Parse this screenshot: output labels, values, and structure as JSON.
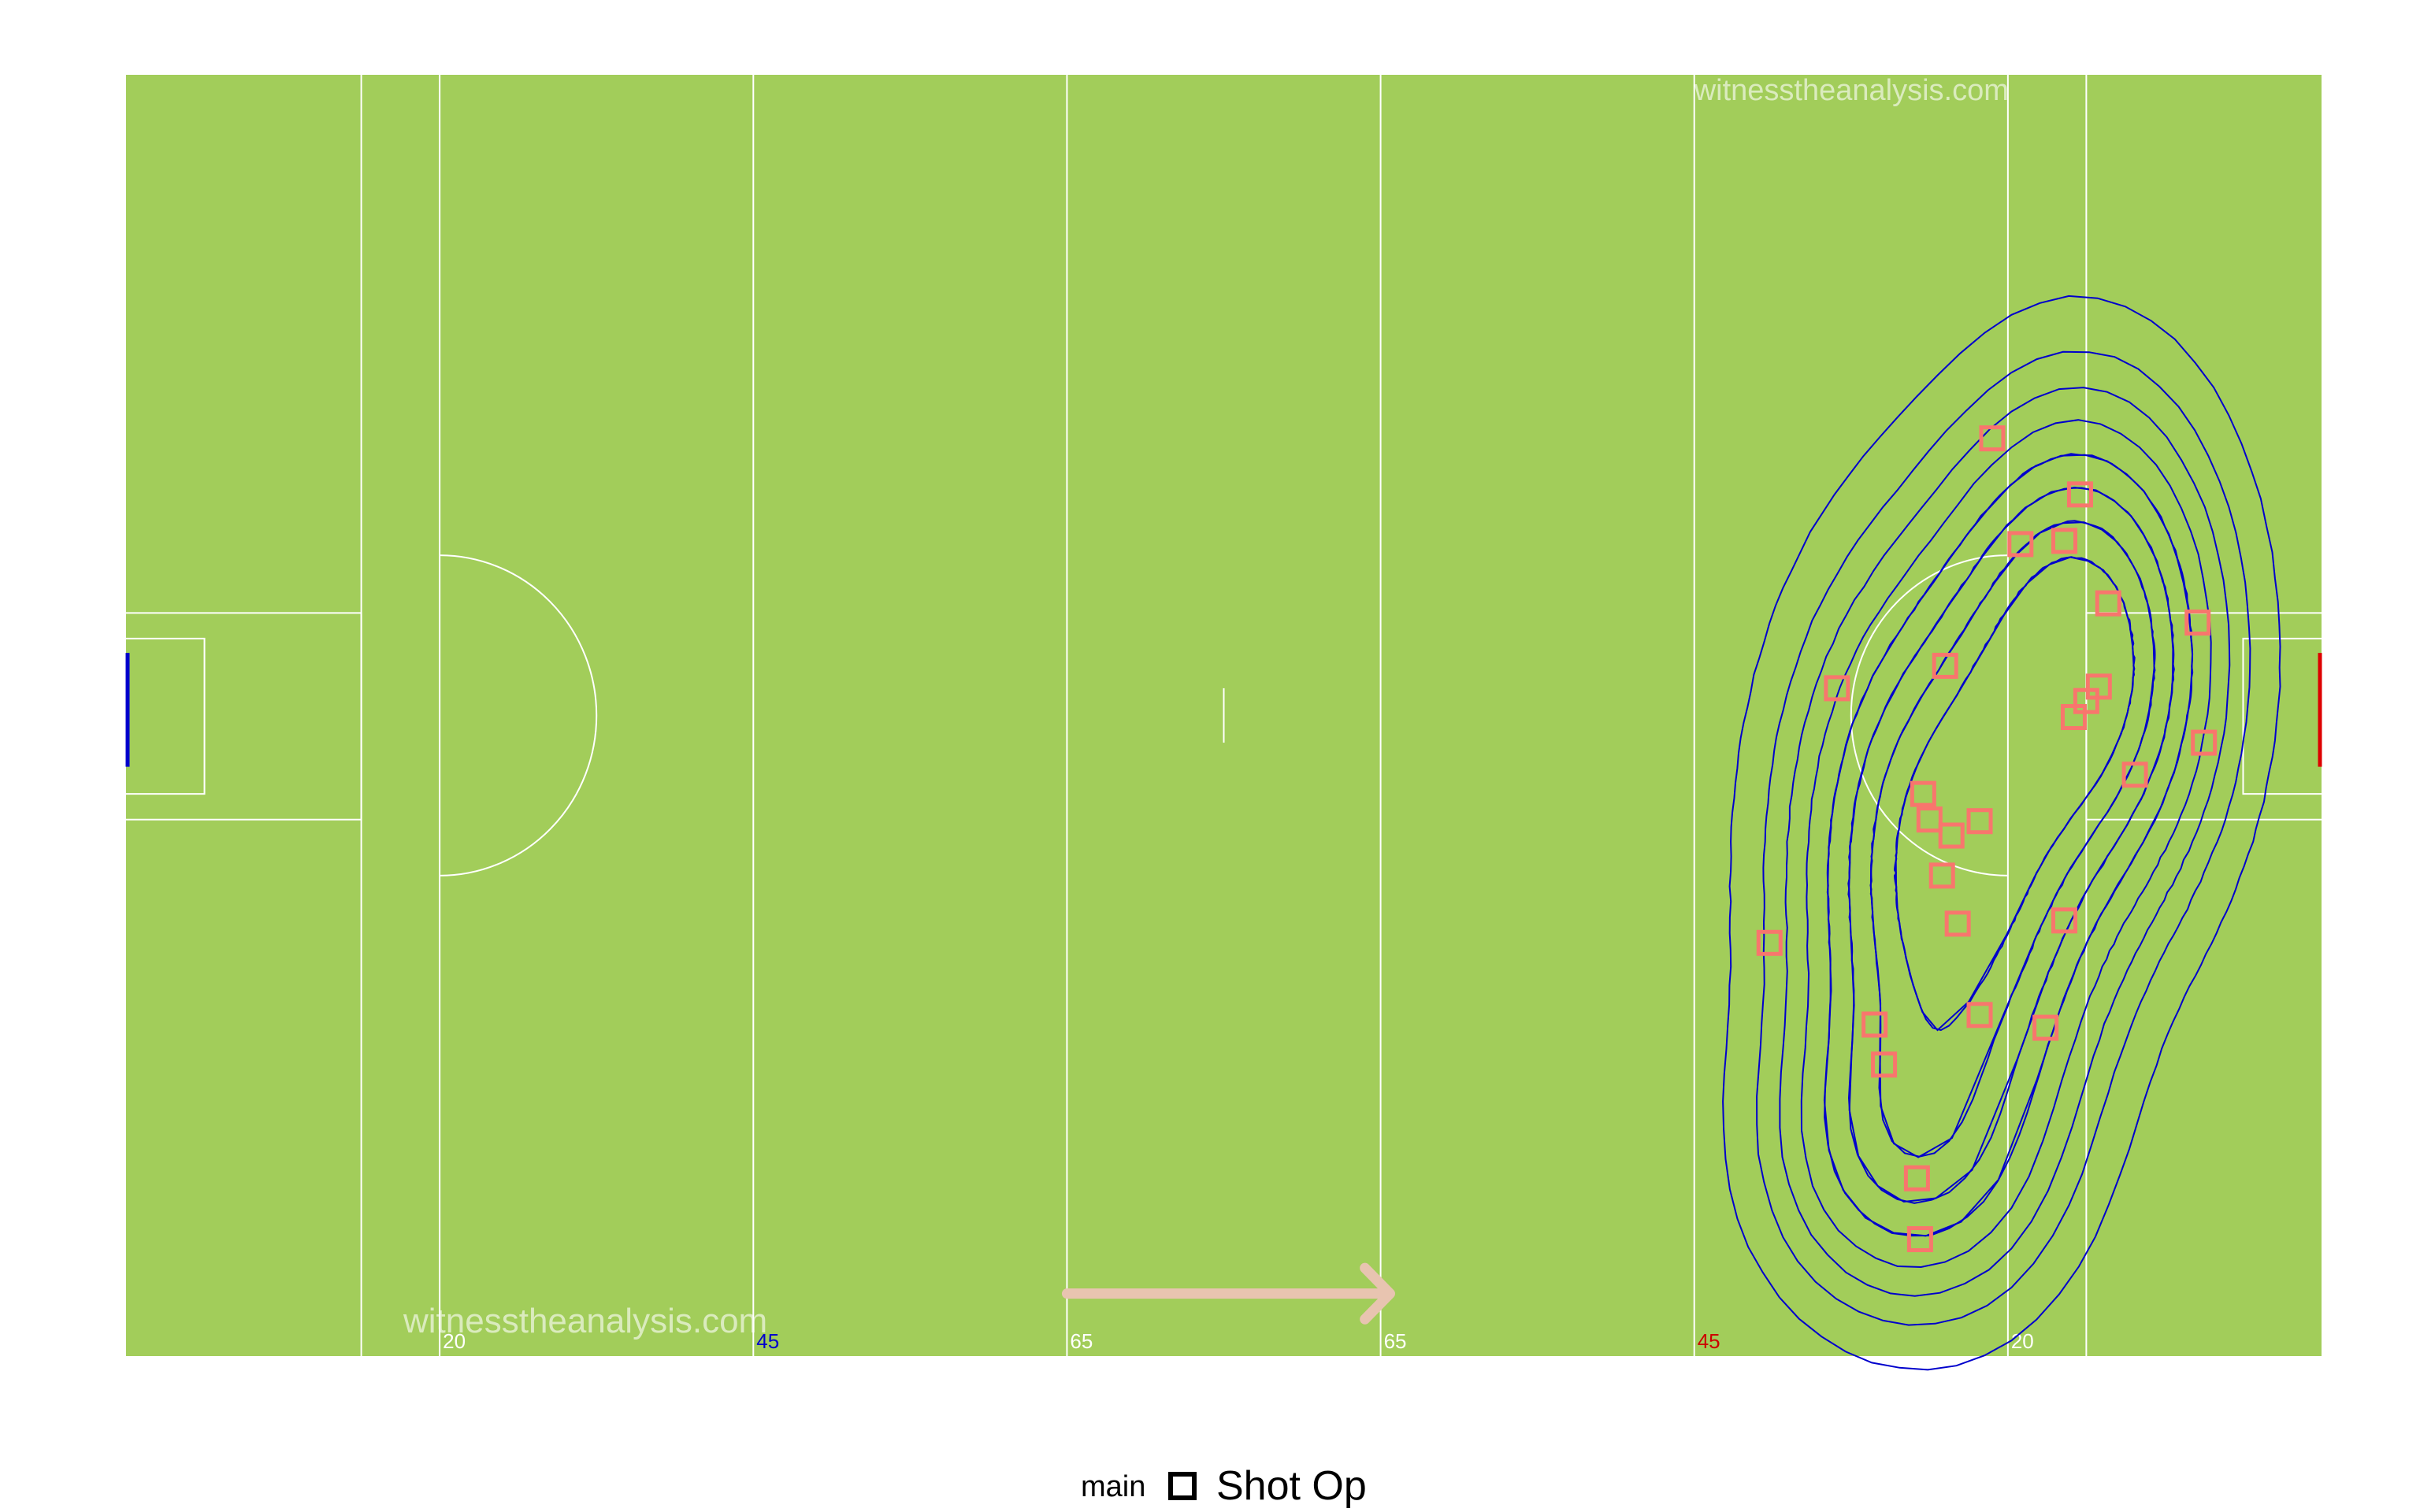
{
  "chart_data": {
    "type": "scatter",
    "pitch_color": "#a2cd5a",
    "line_color": "#ffffff",
    "contour_color": "#0000cc",
    "xlim": [
      0,
      140
    ],
    "ylim": [
      0,
      80
    ],
    "xticks": [
      20,
      {
        "value": 40,
        "label": "45"
      },
      {
        "value": 60,
        "label": "65"
      },
      {
        "value": 80,
        "label": "65"
      },
      {
        "value": 100,
        "label": "45"
      },
      {
        "value": 120,
        "label": "20"
      }
    ],
    "xtick_colors": [
      "#ffffff",
      "#0000cc",
      "#ffffff",
      "#ffffff",
      "#cc0000",
      "#ffffff"
    ],
    "annotations": [
      "witnesstheanalysis.com",
      "witnesstheanalysis.com"
    ],
    "legend_title": "main",
    "legend_position": "bottom",
    "series": [
      {
        "name": "Shot Op",
        "color": "#F8766D",
        "x": [
          119.0,
          124.6,
          120.8,
          123.6,
          126.4,
          132.1,
          109.1,
          116.0,
          125.8,
          125.0,
          124.2,
          132.5,
          128.1,
          114.6,
          115.0,
          118.2,
          116.4,
          115.8,
          116.8,
          123.6,
          104.8,
          118.2,
          111.5,
          122.4,
          112.1,
          114.2,
          114.4
        ],
        "values": [
          57.3,
          53.8,
          50.7,
          50.9,
          47.0,
          45.8,
          41.7,
          43.1,
          41.8,
          40.9,
          39.9,
          38.3,
          36.3,
          35.1,
          33.5,
          33.4,
          32.5,
          30.0,
          27.0,
          27.2,
          25.8,
          21.3,
          20.7,
          20.5,
          18.2,
          11.1,
          7.3
        ]
      }
    ]
  }
}
